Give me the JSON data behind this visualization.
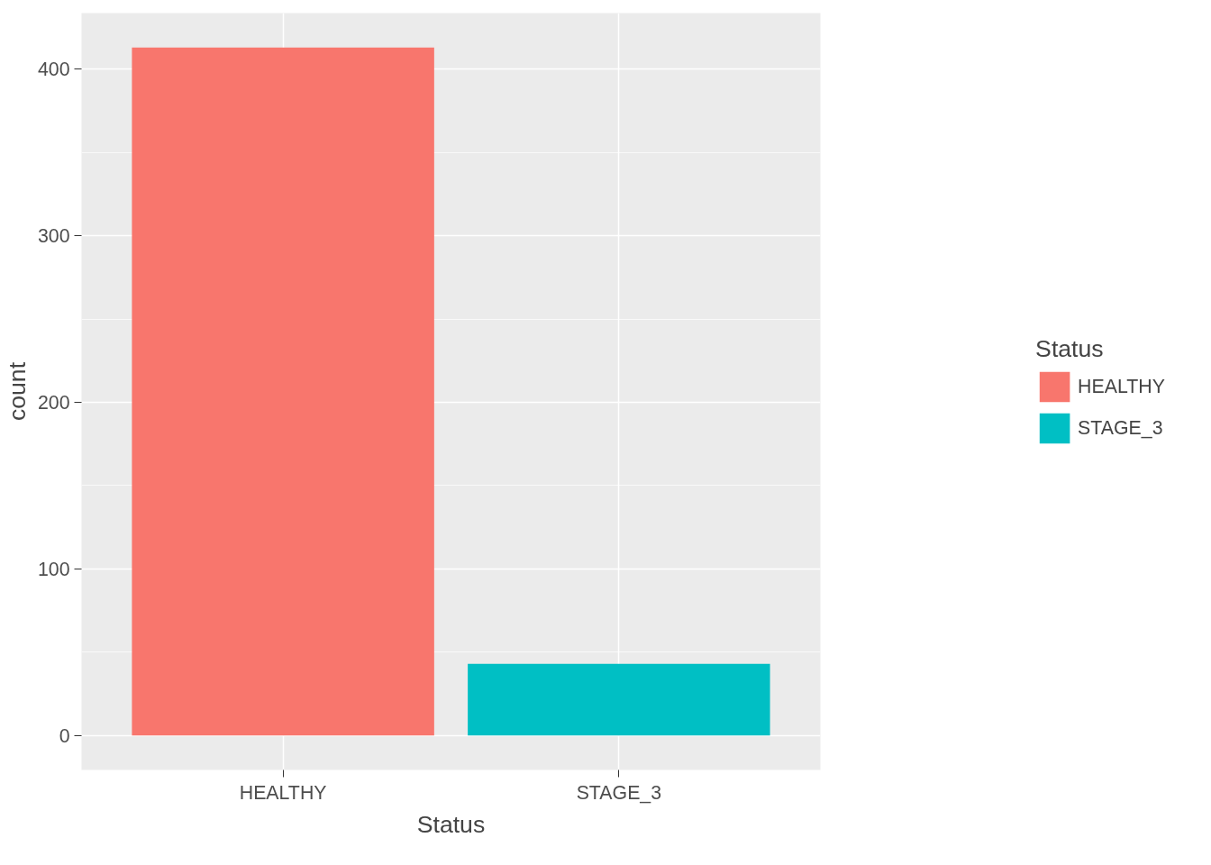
{
  "chart_data": {
    "type": "bar",
    "xlabel": "Status",
    "ylabel": "count",
    "legend_title": "Status",
    "categories": [
      "HEALTHY",
      "STAGE_3"
    ],
    "series": [
      {
        "name": "HEALTHY",
        "color": "#f8766d",
        "values": [
          413,
          null
        ]
      },
      {
        "name": "STAGE_3",
        "color": "#00bfc4",
        "values": [
          null,
          43
        ]
      }
    ],
    "ylim": [
      -20.65,
      433.65
    ],
    "yticks": [
      0,
      100,
      200,
      300,
      400
    ],
    "grid": true,
    "legend": "right"
  }
}
